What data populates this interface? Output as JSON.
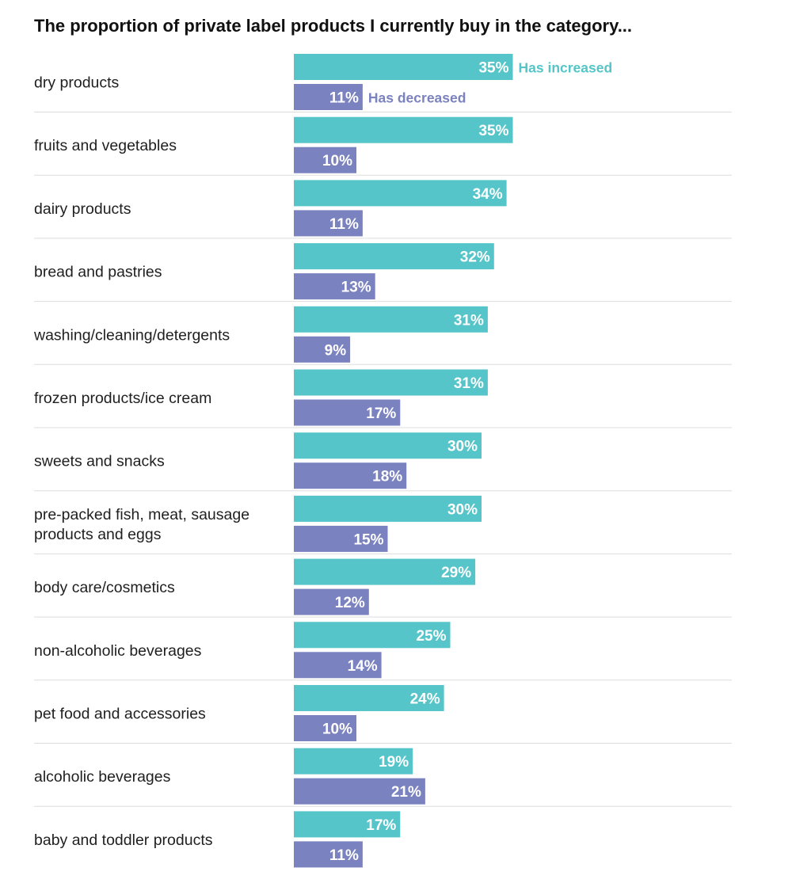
{
  "chart_data": {
    "type": "bar",
    "orientation": "horizontal",
    "title": "The proportion of private label products I currently buy in the category...",
    "value_suffix": "%",
    "categories": [
      "dry products",
      "fruits and vegetables",
      "dairy products",
      "bread and pastries",
      "washing/cleaning/detergents",
      "frozen products/ice cream",
      "sweets and snacks",
      "pre-packed fish, meat, sausage products and eggs",
      "body care/cosmetics",
      "non-alcoholic beverages",
      "pet food and accessories",
      "alcoholic beverages",
      "baby and toddler products"
    ],
    "series": [
      {
        "name": "Has increased",
        "color": "#55c5c9",
        "values": [
          35,
          35,
          34,
          32,
          31,
          31,
          30,
          30,
          29,
          25,
          24,
          19,
          17
        ]
      },
      {
        "name": "Has decreased",
        "color": "#7b82c0",
        "values": [
          11,
          10,
          11,
          13,
          9,
          17,
          18,
          15,
          12,
          14,
          10,
          21,
          11
        ]
      }
    ],
    "legend": "inline labels next to first row's bars",
    "grid": false
  }
}
